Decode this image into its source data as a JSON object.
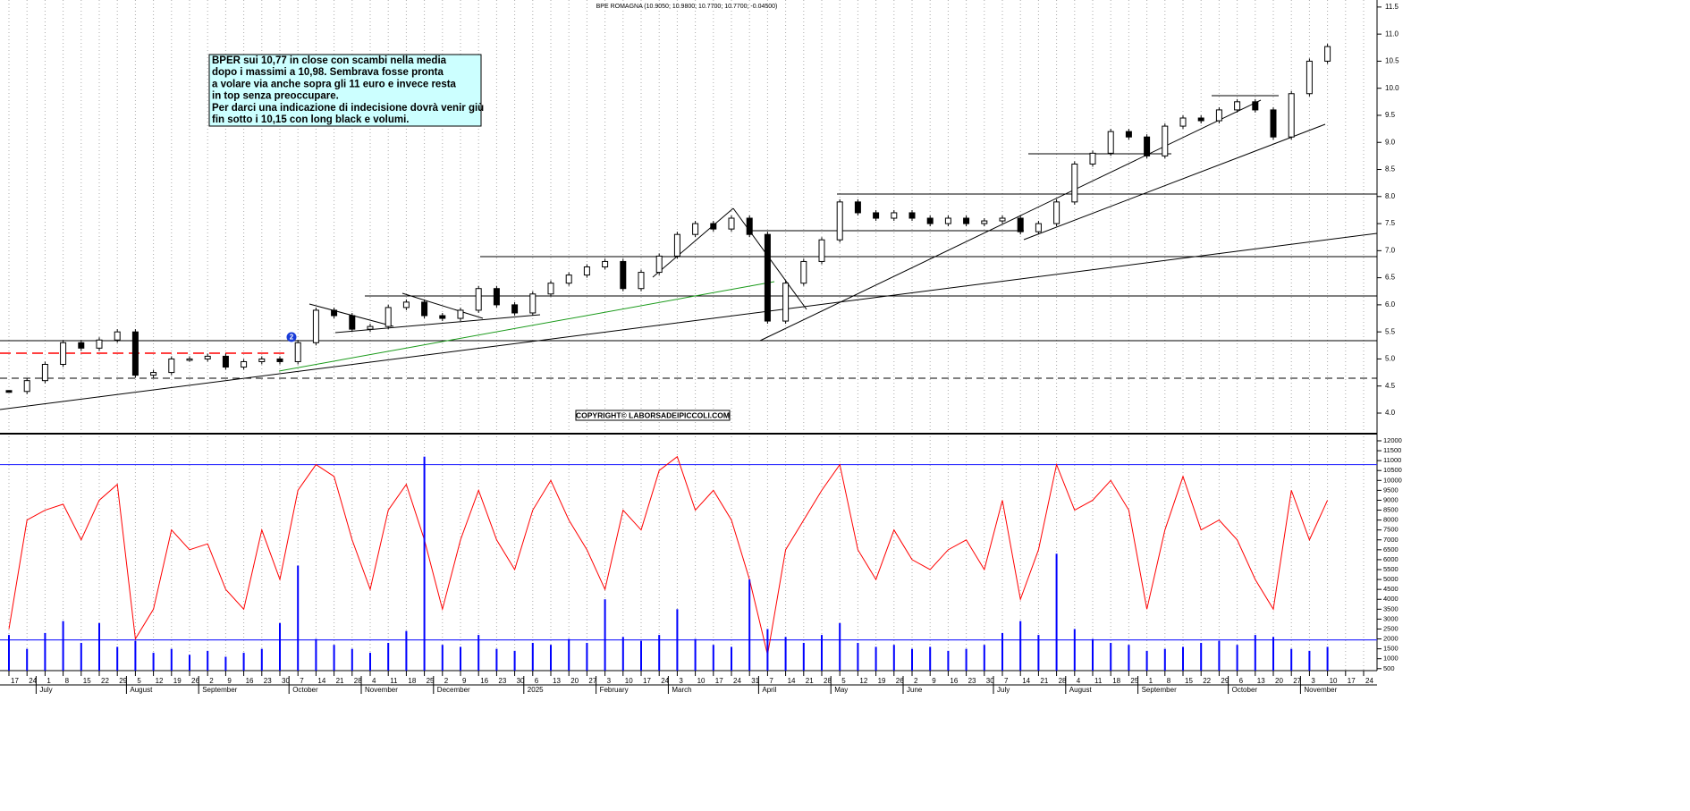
{
  "chart_data": {
    "type": "candlestick",
    "title": "BPE ROMAGNA (10.9050; 10.9800; 10.7700; 10.7700; -0.04500)",
    "annotation": [
      "BPER sui 10,77 in close con scambi nella media",
      "dopo i massimi a 10,98. Sembrava fosse pronta",
      "a volare via anche sopra gli 11 euro e invece resta",
      "in top senza preoccupare.",
      "Per darci una indicazione di indecisione dovrà venir giù",
      "fin sotto i 10,15 con long black e volumi."
    ],
    "copyright": "COPYRIGHT© LABORSADEIPICCOLI.COM",
    "marker": "2",
    "categories": [
      "17",
      "24",
      "1",
      "8",
      "15",
      "22",
      "29",
      "5",
      "12",
      "19",
      "26",
      "2",
      "9",
      "16",
      "23",
      "30",
      "7",
      "14",
      "21",
      "28",
      "4",
      "11",
      "18",
      "25",
      "2",
      "9",
      "16",
      "23",
      "30",
      "6",
      "13",
      "20",
      "27",
      "3",
      "10",
      "17",
      "24",
      "3",
      "10",
      "17",
      "24",
      "31",
      "7",
      "14",
      "21",
      "28",
      "5",
      "12",
      "19",
      "26",
      "2",
      "9",
      "16",
      "23",
      "30",
      "7",
      "14",
      "21",
      "28",
      "4",
      "11",
      "18",
      "25",
      "1",
      "8",
      "15",
      "22",
      "29",
      "6",
      "13",
      "20",
      "27",
      "3",
      "10",
      "17",
      "24"
    ],
    "month_labels": [
      null,
      null,
      "July",
      null,
      null,
      null,
      null,
      "August",
      null,
      null,
      null,
      "September",
      null,
      null,
      null,
      null,
      "October",
      null,
      null,
      null,
      "November",
      null,
      null,
      null,
      "December",
      null,
      null,
      null,
      null,
      "2025",
      null,
      null,
      null,
      "February",
      null,
      null,
      null,
      "March",
      null,
      null,
      null,
      null,
      "April",
      null,
      null,
      null,
      "May",
      null,
      null,
      null,
      "June",
      null,
      null,
      null,
      null,
      "July",
      null,
      null,
      null,
      "August",
      null,
      null,
      null,
      "September",
      null,
      null,
      null,
      null,
      "October",
      null,
      null,
      null,
      "November",
      null,
      null,
      null
    ],
    "series": [
      {
        "name": "price",
        "axis": "y",
        "color": "#000000",
        "values": [
          4.4,
          4.6,
          4.9,
          5.3,
          5.2,
          5.35,
          5.5,
          4.7,
          4.75,
          5.0,
          5.0,
          5.05,
          4.85,
          4.95,
          5.0,
          4.95,
          5.3,
          5.9,
          5.8,
          5.55,
          5.6,
          5.95,
          6.05,
          5.8,
          5.75,
          5.9,
          6.3,
          6.0,
          5.85,
          6.2,
          6.4,
          6.55,
          6.7,
          6.8,
          6.3,
          6.6,
          6.9,
          7.3,
          7.5,
          7.4,
          7.6,
          7.3,
          5.7,
          6.4,
          6.8,
          7.2,
          7.9,
          7.7,
          7.6,
          7.7,
          7.6,
          7.5,
          7.6,
          7.5,
          7.55,
          7.6,
          7.35,
          7.5,
          7.9,
          8.6,
          8.8,
          9.2,
          9.1,
          8.75,
          9.3,
          9.45,
          9.4,
          9.6,
          9.75,
          9.6,
          9.1,
          9.9,
          10.5,
          10.77,
          null,
          null
        ]
      },
      {
        "name": "oscillator",
        "axis": "y2",
        "color": "#ff0000",
        "values": [
          2500,
          8000,
          8500,
          8800,
          7000,
          9000,
          9800,
          2000,
          3500,
          7500,
          6500,
          6800,
          4500,
          3500,
          7500,
          5000,
          9500,
          10800,
          10200,
          7000,
          4500,
          8500,
          9800,
          7000,
          3500,
          7000,
          9500,
          7000,
          5500,
          8500,
          10000,
          8000,
          6500,
          4500,
          8500,
          7500,
          10500,
          11200,
          8500,
          9500,
          8000,
          5000,
          1200,
          6500,
          8000,
          9500,
          10800,
          6500,
          5000,
          7500,
          6000,
          5500,
          6500,
          7000,
          5500,
          9000,
          4000,
          6500,
          10800,
          8500,
          9000,
          10000,
          8500,
          3500,
          7500,
          10200,
          7500,
          8000,
          7000,
          5000,
          3500,
          9500,
          7000,
          9000,
          null,
          null
        ]
      },
      {
        "name": "volume",
        "axis": "y2",
        "color": "#0000ff",
        "values": [
          2200,
          1500,
          2300,
          2900,
          1800,
          2800,
          1600,
          1900,
          1300,
          1500,
          1200,
          1400,
          1100,
          1300,
          1500,
          2800,
          5700,
          2000,
          1700,
          1500,
          1300,
          1800,
          2400,
          11200,
          1700,
          1600,
          2200,
          1500,
          1400,
          1800,
          1700,
          2000,
          1800,
          4000,
          2100,
          1900,
          2200,
          3500,
          2000,
          1700,
          1600,
          5000,
          2500,
          2100,
          1800,
          2200,
          2800,
          1800,
          1600,
          1700,
          1500,
          1600,
          1400,
          1500,
          1700,
          2300,
          2900,
          2200,
          6300,
          2500,
          2000,
          1800,
          1700,
          1400,
          1500,
          1600,
          1800,
          1900,
          1700,
          2200,
          2100,
          1500,
          1400,
          1600,
          null,
          null
        ]
      }
    ],
    "y2_reference_lines": [
      10800,
      1950
    ],
    "ylim": [
      3.62,
      11.63
    ],
    "yticks": [
      {
        "value": 4,
        "label": "4.0"
      },
      4.5,
      {
        "value": 5,
        "label": "5.0"
      },
      5.5,
      {
        "value": 6,
        "label": "6.0"
      },
      6.5,
      {
        "value": 7,
        "label": "7.0"
      },
      7.5,
      {
        "value": 8,
        "label": "8.0"
      },
      8.5,
      {
        "value": 9,
        "label": "9.0"
      },
      9.5,
      {
        "value": 10,
        "label": "10.0"
      },
      10.5,
      {
        "value": 11,
        "label": "11.0"
      },
      11.5
    ],
    "y2lim": [
      400,
      12270
    ],
    "y2ticks": [
      500,
      1000,
      1500,
      2000,
      2500,
      3000,
      3500,
      4000,
      4500,
      5000,
      5500,
      6000,
      6500,
      7000,
      7500,
      8000,
      8500,
      9000,
      9500,
      10000,
      10500,
      11000,
      11500,
      12000
    ],
    "grid": true
  }
}
